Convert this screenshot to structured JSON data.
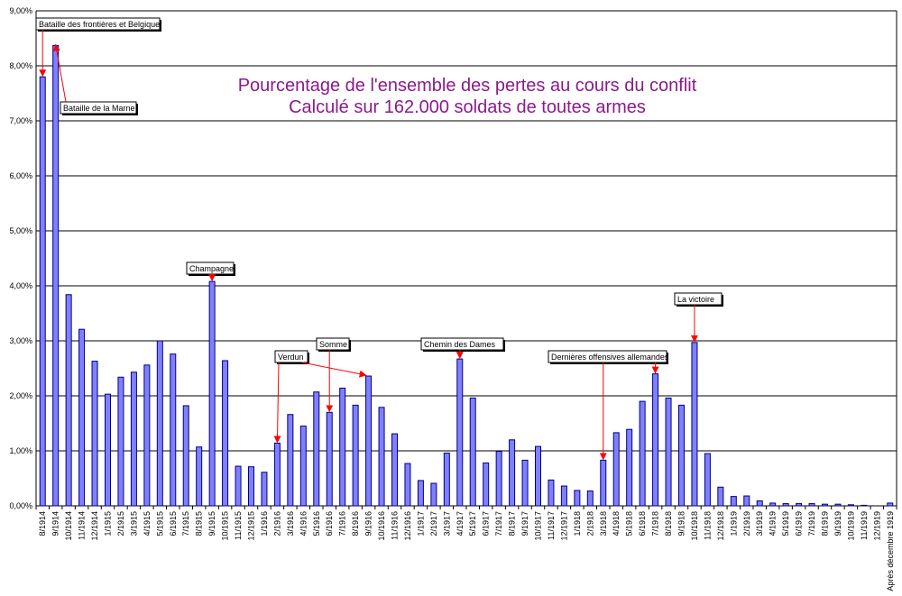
{
  "chart_data": {
    "type": "bar",
    "title": [
      "Pourcentage de l'ensemble des pertes au cours du conflit",
      "Calculé sur 162.000 soldats de toutes armes"
    ],
    "xlabel": "",
    "ylabel": "",
    "ylim": [
      0,
      9
    ],
    "yticks": [
      "0,00%",
      "1,00%",
      "2,00%",
      "3,00%",
      "4,00%",
      "5,00%",
      "6,00%",
      "7,00%",
      "8,00%",
      "9,00%"
    ],
    "grid": true,
    "legend": "none",
    "categories": [
      "8/1914",
      "9/1914",
      "10/1914",
      "11/1914",
      "12/1914",
      "1/1915",
      "2/1915",
      "3/1915",
      "4/1915",
      "5/1915",
      "6/1915",
      "7/1915",
      "8/1915",
      "9/1915",
      "10/1915",
      "11/1915",
      "12/1915",
      "1/1916",
      "2/1916",
      "3/1916",
      "4/1916",
      "5/1916",
      "6/1916",
      "7/1916",
      "8/1916",
      "9/1916",
      "10/1916",
      "11/1916",
      "12/1916",
      "1/1917",
      "2/1917",
      "3/1917",
      "4/1917",
      "5/1917",
      "6/1917",
      "7/1917",
      "8/1917",
      "9/1917",
      "10/1917",
      "11/1917",
      "12/1917",
      "1/1918",
      "2/1918",
      "3/1918",
      "4/1918",
      "5/1918",
      "6/1918",
      "7/1918",
      "8/1918",
      "9/1918",
      "10/1918",
      "11/1918",
      "12/1918",
      "1/1919",
      "2/1919",
      "3/1919",
      "4/1919",
      "5/1919",
      "6/1919",
      "7/1919",
      "8/1919",
      "9/1919",
      "10/1919",
      "11/1919",
      "12/1919",
      "Après décembre 1919"
    ],
    "values": [
      7.8,
      8.37,
      3.84,
      3.21,
      2.63,
      2.03,
      2.34,
      2.43,
      2.56,
      3.0,
      2.76,
      1.82,
      1.07,
      4.08,
      2.64,
      0.72,
      0.71,
      0.61,
      1.14,
      1.66,
      1.45,
      2.07,
      1.7,
      2.14,
      1.83,
      2.36,
      1.79,
      1.31,
      0.77,
      0.46,
      0.41,
      0.96,
      2.67,
      1.96,
      0.78,
      0.99,
      1.2,
      0.83,
      1.08,
      0.47,
      0.36,
      0.28,
      0.27,
      0.83,
      1.33,
      1.39,
      1.9,
      2.4,
      1.96,
      1.83,
      2.97,
      0.95,
      0.34,
      0.17,
      0.18,
      0.09,
      0.05,
      0.04,
      0.04,
      0.04,
      0.03,
      0.03,
      0.02,
      0.01,
      0.0,
      0.05
    ],
    "colors": {
      "bar_fill": "#8080ff",
      "bar_stroke": "#000080",
      "title": "#8b1a8b",
      "arrow": "#ff0000"
    },
    "annotations": [
      {
        "text": "Bataille des frontières et Belgique",
        "targets": [
          0
        ]
      },
      {
        "text": "Bataille de la Marne",
        "targets": [
          1
        ]
      },
      {
        "text": "Champagne",
        "targets": [
          13
        ]
      },
      {
        "text": "Verdun",
        "targets": [
          18,
          25
        ]
      },
      {
        "text": "Somme",
        "targets": [
          22
        ]
      },
      {
        "text": "Chemin des Dames",
        "targets": [
          32
        ]
      },
      {
        "text": "Dernières offensives allemandes",
        "targets": [
          43,
          47
        ]
      },
      {
        "text": "La victoire",
        "targets": [
          50
        ]
      }
    ]
  }
}
